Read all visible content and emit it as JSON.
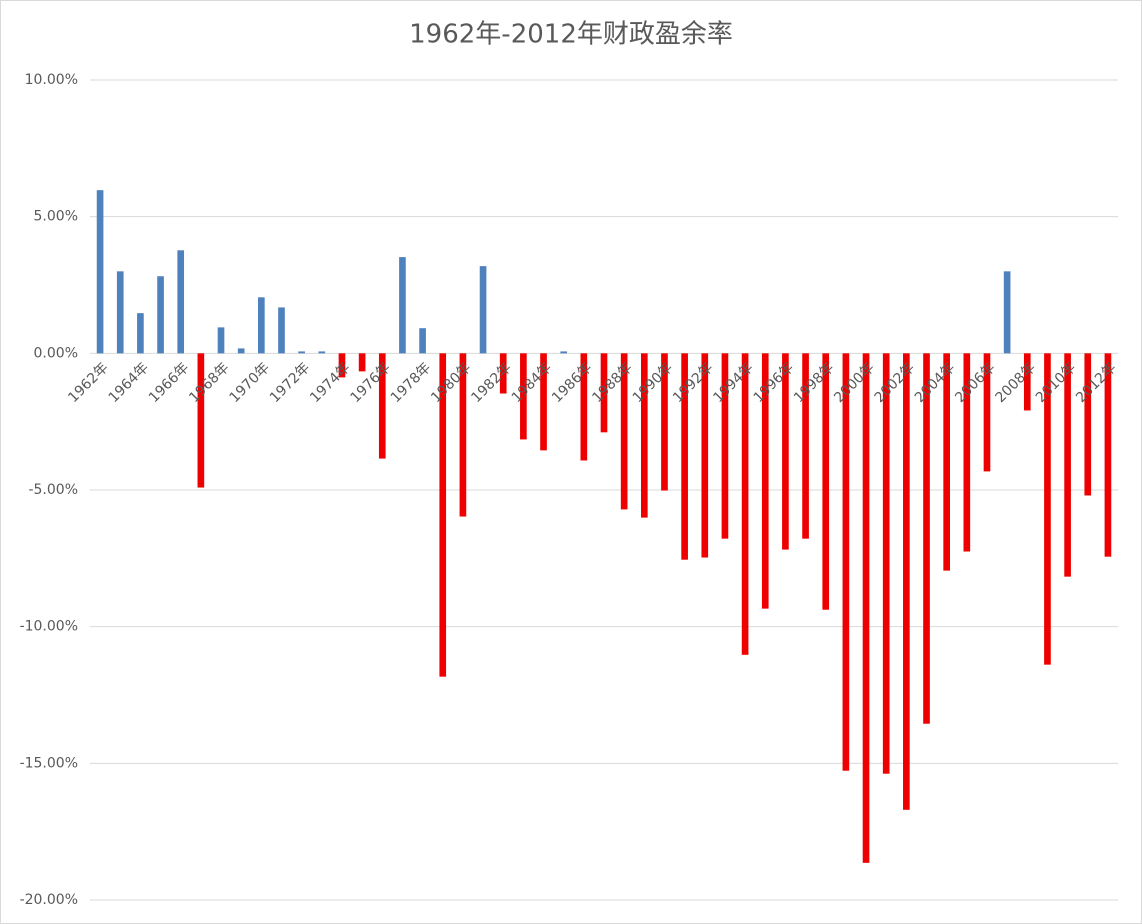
{
  "chart_data": {
    "type": "bar",
    "title": "1962年-2012年财政盈余率",
    "categories": [
      "1962年",
      null,
      "1964年",
      null,
      "1966年",
      null,
      "1968年",
      null,
      "1970年",
      null,
      "1972年",
      null,
      "1974年",
      null,
      "1976年",
      null,
      "1978年",
      null,
      "1980年",
      null,
      "1982年",
      null,
      "1984年",
      null,
      "1986年",
      null,
      "1988年",
      null,
      "1990年",
      null,
      "1992年",
      null,
      "1994年",
      null,
      "1996年",
      null,
      "1998年",
      null,
      "2000年",
      null,
      "2002年",
      null,
      "2004年",
      null,
      "2006年",
      null,
      "2008年",
      null,
      "2010年",
      null,
      "2012年"
    ],
    "values": [
      5.97,
      3.0,
      1.47,
      2.82,
      3.77,
      -4.91,
      0.95,
      0.18,
      2.05,
      1.68,
      0.07,
      0.07,
      -0.88,
      -0.66,
      -3.85,
      3.52,
      0.92,
      -11.83,
      -5.97,
      3.19,
      -1.47,
      -3.15,
      -3.55,
      0.07,
      -3.92,
      -2.89,
      -5.71,
      -6.01,
      -5.02,
      -7.55,
      -7.47,
      -6.78,
      -11.03,
      -9.34,
      -7.18,
      -6.78,
      -9.38,
      -15.27,
      -18.64,
      -15.38,
      -16.7,
      -13.55,
      -7.95,
      -7.25,
      -4.32,
      3.0,
      -2.09,
      -11.39,
      -8.17,
      -5.2,
      -7.44
    ],
    "positive_color": "#4f81bd",
    "negative_color": "#ee0000",
    "ylim": [
      -20,
      10
    ],
    "yticks": [
      {
        "value": -20,
        "label": "-20.00%"
      },
      {
        "value": -15,
        "label": "-15.00%"
      },
      {
        "value": -10,
        "label": "-10.00%"
      },
      {
        "value": -5,
        "label": "-5.00%"
      },
      {
        "value": 0,
        "label": "0.00%"
      },
      {
        "value": 5,
        "label": "5.00%"
      },
      {
        "value": 10,
        "label": "10.00%"
      }
    ],
    "grid": true
  }
}
